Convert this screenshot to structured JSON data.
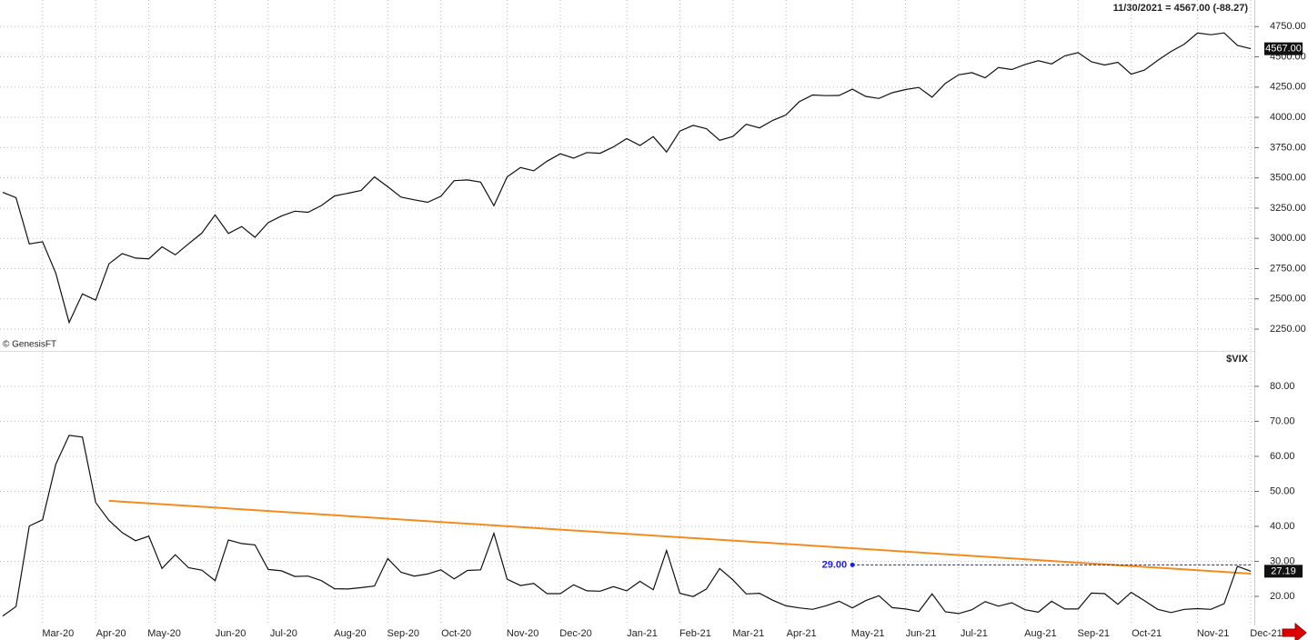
{
  "chart_data": [
    {
      "type": "line",
      "title": "11/30/2021 = 4567.00 (-88.27)",
      "watermark": "© GenesisFT",
      "last_value_label": "4567.00",
      "categories": [
        null,
        null,
        null,
        "Mar-20",
        null,
        null,
        null,
        "Apr-20",
        null,
        null,
        null,
        "May-20",
        null,
        null,
        null,
        null,
        "Jun-20",
        null,
        null,
        null,
        "Jul-20",
        null,
        null,
        null,
        null,
        "Aug-20",
        null,
        null,
        null,
        "Sep-20",
        null,
        null,
        null,
        "Oct-20",
        null,
        null,
        null,
        null,
        "Nov-20",
        null,
        null,
        null,
        "Dec-20",
        null,
        null,
        null,
        null,
        "Jan-21",
        null,
        null,
        null,
        "Feb-21",
        null,
        null,
        null,
        "Mar-21",
        null,
        null,
        null,
        "Apr-21",
        null,
        null,
        null,
        null,
        "May-21",
        null,
        null,
        null,
        "Jun-21",
        null,
        null,
        null,
        "Jul-21",
        null,
        null,
        null,
        null,
        "Aug-21",
        null,
        null,
        null,
        "Sep-21",
        null,
        null,
        null,
        "Oct-21",
        null,
        null,
        null,
        null,
        "Nov-21",
        null,
        null,
        null,
        "Dec-21"
      ],
      "series": [
        {
          "color": "#111111",
          "values": [
            3380,
            3337,
            2954,
            2972,
            2711,
            2305,
            2541,
            2489,
            2790,
            2875,
            2837,
            2831,
            2930,
            2864,
            2955,
            3044,
            3194,
            3041,
            3098,
            3009,
            3130,
            3185,
            3225,
            3216,
            3271,
            3351,
            3373,
            3397,
            3508,
            3427,
            3341,
            3319,
            3298,
            3348,
            3477,
            3483,
            3465,
            3270,
            3509,
            3585,
            3558,
            3638,
            3699,
            3663,
            3709,
            3703,
            3756,
            3824,
            3768,
            3841,
            3714,
            3887,
            3934,
            3906,
            3811,
            3842,
            3943,
            3913,
            3975,
            4020,
            4129,
            4185,
            4180,
            4181,
            4233,
            4174,
            4156,
            4204,
            4230,
            4247,
            4167,
            4281,
            4352,
            4370,
            4327,
            4412,
            4395,
            4437,
            4468,
            4442,
            4509,
            4535,
            4459,
            4433,
            4455,
            4357,
            4391,
            4471,
            4545,
            4605,
            4697,
            4683,
            4698,
            4595,
            4567
          ]
        }
      ],
      "ylim": [
        2070,
        4970
      ],
      "yticks": [
        {
          "value": 2250,
          "label": "2250.00"
        },
        {
          "value": 2500,
          "label": "2500.00"
        },
        {
          "value": 2750,
          "label": "2750.00"
        },
        {
          "value": 3000,
          "label": "3000.00"
        },
        {
          "value": 3250,
          "label": "3250.00"
        },
        {
          "value": 3500,
          "label": "3500.00"
        },
        {
          "value": 3750,
          "label": "3750.00"
        },
        {
          "value": 4000,
          "label": "4000.00"
        },
        {
          "value": 4250,
          "label": "4250.00"
        },
        {
          "value": 4500,
          "label": "4500.00"
        },
        {
          "value": 4750,
          "label": "4750.00"
        }
      ],
      "grid": true
    },
    {
      "type": "line",
      "title": "$VIX",
      "last_value_label": "27.19",
      "series": [
        {
          "color": "#111111",
          "values": [
            14.4,
            17.1,
            40.1,
            41.9,
            57.8,
            66.0,
            65.5,
            46.8,
            41.7,
            38.2,
            35.9,
            37.2,
            27.98,
            31.9,
            28.2,
            27.5,
            24.5,
            36.1,
            35.1,
            34.7,
            27.7,
            27.3,
            25.7,
            25.8,
            24.5,
            22.2,
            22.1,
            22.5,
            22.96,
            30.8,
            26.9,
            25.8,
            26.4,
            27.6,
            25.0,
            27.4,
            27.6,
            38.0,
            24.9,
            23.1,
            23.7,
            20.8,
            20.8,
            23.3,
            21.6,
            21.5,
            22.8,
            21.6,
            24.3,
            21.9,
            33.1,
            20.9,
            19.97,
            22.1,
            27.95,
            24.7,
            20.7,
            20.9,
            18.9,
            17.3,
            16.7,
            16.3,
            17.3,
            18.6,
            16.7,
            18.8,
            20.2,
            16.8,
            16.4,
            15.7,
            20.7,
            15.6,
            15.1,
            16.2,
            18.5,
            17.2,
            18.2,
            16.2,
            15.5,
            18.6,
            16.4,
            16.4,
            20.95,
            20.8,
            17.75,
            21.15,
            18.8,
            16.3,
            15.4,
            16.3,
            16.5,
            16.3,
            17.9,
            28.6,
            27.19
          ]
        }
      ],
      "trendline": {
        "color": "#f28c1c",
        "x": [
          8,
          94
        ],
        "values": [
          47.3,
          26.5
        ]
      },
      "level": {
        "color": "#1a1aff",
        "value": 29,
        "label": "29.00",
        "x": 64
      },
      "ylim": [
        11.7,
        89.6
      ],
      "yticks": [
        {
          "value": 20,
          "label": "20.00"
        },
        {
          "value": 30,
          "label": "30.00"
        },
        {
          "value": 40,
          "label": "40.00"
        },
        {
          "value": 50,
          "label": "50.00"
        },
        {
          "value": 60,
          "label": "60.00"
        },
        {
          "value": 70,
          "label": "70.00"
        },
        {
          "value": 80,
          "label": "80.00"
        }
      ],
      "grid": true
    }
  ]
}
